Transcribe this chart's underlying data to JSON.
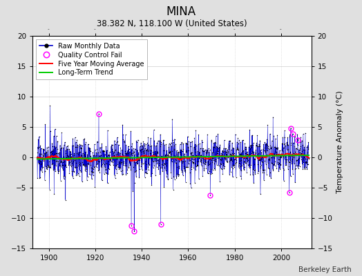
{
  "title": "MINA",
  "subtitle": "38.382 N, 118.100 W (United States)",
  "ylabel": "Temperature Anomaly (°C)",
  "credit": "Berkeley Earth",
  "year_start": 1895,
  "year_end": 2011,
  "ylim": [
    -15,
    20
  ],
  "yticks_left": [
    -15,
    -10,
    -5,
    0,
    5,
    10,
    15,
    20
  ],
  "yticks_right": [
    -15,
    -10,
    -5,
    0,
    5,
    10,
    15,
    20
  ],
  "xlim": [
    1893,
    2013
  ],
  "xticks": [
    1900,
    1920,
    1940,
    1960,
    1980,
    2000
  ],
  "raw_color": "#0000cc",
  "moving_avg_color": "#ff0000",
  "trend_color": "#00cc00",
  "qc_color": "#ff00ff",
  "bg_color": "#e0e0e0",
  "plot_bg_color": "#ffffff",
  "grid_color": "#cccccc",
  "noise_std": 1.7,
  "seed": 17,
  "qc_points": [
    [
      1921.5,
      7.2
    ],
    [
      1935.5,
      -11.2
    ],
    [
      1936.8,
      -12.2
    ],
    [
      1948.2,
      -11.0
    ],
    [
      1969.5,
      -6.2
    ],
    [
      2003.5,
      -5.8
    ],
    [
      2004.2,
      4.8
    ],
    [
      2005.0,
      3.9
    ],
    [
      2007.3,
      2.8
    ]
  ]
}
